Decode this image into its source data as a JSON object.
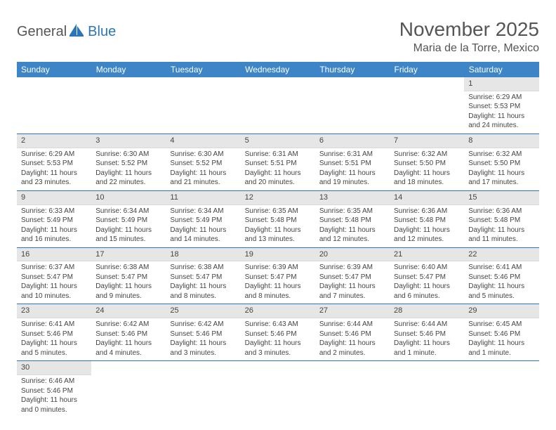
{
  "logo": {
    "part1": "General",
    "part2": "Blue"
  },
  "title": "November 2025",
  "location": "Maria de la Torre, Mexico",
  "colors": {
    "header_bg": "#3d85c6",
    "header_text": "#ffffff",
    "rule": "#2a75bb",
    "daynum_bg": "#e6e6e6",
    "text": "#444444"
  },
  "weekdays": [
    "Sunday",
    "Monday",
    "Tuesday",
    "Wednesday",
    "Thursday",
    "Friday",
    "Saturday"
  ],
  "grid": [
    [
      null,
      null,
      null,
      null,
      null,
      null,
      {
        "n": "1",
        "sr": "Sunrise: 6:29 AM",
        "ss": "Sunset: 5:53 PM",
        "dl": "Daylight: 11 hours and 24 minutes."
      }
    ],
    [
      {
        "n": "2",
        "sr": "Sunrise: 6:29 AM",
        "ss": "Sunset: 5:53 PM",
        "dl": "Daylight: 11 hours and 23 minutes."
      },
      {
        "n": "3",
        "sr": "Sunrise: 6:30 AM",
        "ss": "Sunset: 5:52 PM",
        "dl": "Daylight: 11 hours and 22 minutes."
      },
      {
        "n": "4",
        "sr": "Sunrise: 6:30 AM",
        "ss": "Sunset: 5:52 PM",
        "dl": "Daylight: 11 hours and 21 minutes."
      },
      {
        "n": "5",
        "sr": "Sunrise: 6:31 AM",
        "ss": "Sunset: 5:51 PM",
        "dl": "Daylight: 11 hours and 20 minutes."
      },
      {
        "n": "6",
        "sr": "Sunrise: 6:31 AM",
        "ss": "Sunset: 5:51 PM",
        "dl": "Daylight: 11 hours and 19 minutes."
      },
      {
        "n": "7",
        "sr": "Sunrise: 6:32 AM",
        "ss": "Sunset: 5:50 PM",
        "dl": "Daylight: 11 hours and 18 minutes."
      },
      {
        "n": "8",
        "sr": "Sunrise: 6:32 AM",
        "ss": "Sunset: 5:50 PM",
        "dl": "Daylight: 11 hours and 17 minutes."
      }
    ],
    [
      {
        "n": "9",
        "sr": "Sunrise: 6:33 AM",
        "ss": "Sunset: 5:49 PM",
        "dl": "Daylight: 11 hours and 16 minutes."
      },
      {
        "n": "10",
        "sr": "Sunrise: 6:34 AM",
        "ss": "Sunset: 5:49 PM",
        "dl": "Daylight: 11 hours and 15 minutes."
      },
      {
        "n": "11",
        "sr": "Sunrise: 6:34 AM",
        "ss": "Sunset: 5:49 PM",
        "dl": "Daylight: 11 hours and 14 minutes."
      },
      {
        "n": "12",
        "sr": "Sunrise: 6:35 AM",
        "ss": "Sunset: 5:48 PM",
        "dl": "Daylight: 11 hours and 13 minutes."
      },
      {
        "n": "13",
        "sr": "Sunrise: 6:35 AM",
        "ss": "Sunset: 5:48 PM",
        "dl": "Daylight: 11 hours and 12 minutes."
      },
      {
        "n": "14",
        "sr": "Sunrise: 6:36 AM",
        "ss": "Sunset: 5:48 PM",
        "dl": "Daylight: 11 hours and 12 minutes."
      },
      {
        "n": "15",
        "sr": "Sunrise: 6:36 AM",
        "ss": "Sunset: 5:48 PM",
        "dl": "Daylight: 11 hours and 11 minutes."
      }
    ],
    [
      {
        "n": "16",
        "sr": "Sunrise: 6:37 AM",
        "ss": "Sunset: 5:47 PM",
        "dl": "Daylight: 11 hours and 10 minutes."
      },
      {
        "n": "17",
        "sr": "Sunrise: 6:38 AM",
        "ss": "Sunset: 5:47 PM",
        "dl": "Daylight: 11 hours and 9 minutes."
      },
      {
        "n": "18",
        "sr": "Sunrise: 6:38 AM",
        "ss": "Sunset: 5:47 PM",
        "dl": "Daylight: 11 hours and 8 minutes."
      },
      {
        "n": "19",
        "sr": "Sunrise: 6:39 AM",
        "ss": "Sunset: 5:47 PM",
        "dl": "Daylight: 11 hours and 8 minutes."
      },
      {
        "n": "20",
        "sr": "Sunrise: 6:39 AM",
        "ss": "Sunset: 5:47 PM",
        "dl": "Daylight: 11 hours and 7 minutes."
      },
      {
        "n": "21",
        "sr": "Sunrise: 6:40 AM",
        "ss": "Sunset: 5:47 PM",
        "dl": "Daylight: 11 hours and 6 minutes."
      },
      {
        "n": "22",
        "sr": "Sunrise: 6:41 AM",
        "ss": "Sunset: 5:46 PM",
        "dl": "Daylight: 11 hours and 5 minutes."
      }
    ],
    [
      {
        "n": "23",
        "sr": "Sunrise: 6:41 AM",
        "ss": "Sunset: 5:46 PM",
        "dl": "Daylight: 11 hours and 5 minutes."
      },
      {
        "n": "24",
        "sr": "Sunrise: 6:42 AM",
        "ss": "Sunset: 5:46 PM",
        "dl": "Daylight: 11 hours and 4 minutes."
      },
      {
        "n": "25",
        "sr": "Sunrise: 6:42 AM",
        "ss": "Sunset: 5:46 PM",
        "dl": "Daylight: 11 hours and 3 minutes."
      },
      {
        "n": "26",
        "sr": "Sunrise: 6:43 AM",
        "ss": "Sunset: 5:46 PM",
        "dl": "Daylight: 11 hours and 3 minutes."
      },
      {
        "n": "27",
        "sr": "Sunrise: 6:44 AM",
        "ss": "Sunset: 5:46 PM",
        "dl": "Daylight: 11 hours and 2 minutes."
      },
      {
        "n": "28",
        "sr": "Sunrise: 6:44 AM",
        "ss": "Sunset: 5:46 PM",
        "dl": "Daylight: 11 hours and 1 minute."
      },
      {
        "n": "29",
        "sr": "Sunrise: 6:45 AM",
        "ss": "Sunset: 5:46 PM",
        "dl": "Daylight: 11 hours and 1 minute."
      }
    ],
    [
      {
        "n": "30",
        "sr": "Sunrise: 6:46 AM",
        "ss": "Sunset: 5:46 PM",
        "dl": "Daylight: 11 hours and 0 minutes."
      },
      null,
      null,
      null,
      null,
      null,
      null
    ]
  ]
}
